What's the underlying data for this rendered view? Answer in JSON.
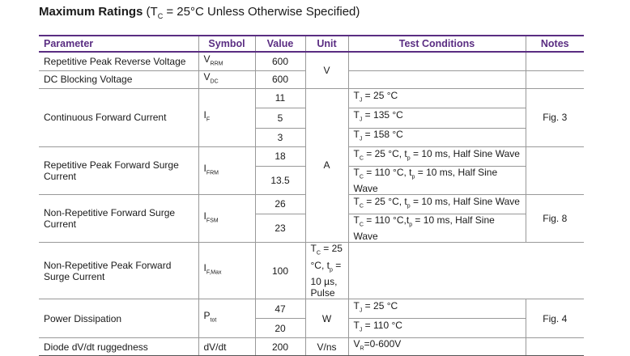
{
  "title": {
    "bold": "Maximum Ratings",
    "pre": "(T",
    "sub": "C",
    "post": " = 25°C Unless Otherwise Specified)"
  },
  "headers": {
    "parameter": "Parameter",
    "symbol": "Symbol",
    "value": "Value",
    "unit": "Unit",
    "test": "Test Conditions",
    "notes": "Notes"
  },
  "rows": {
    "vrrm": {
      "param": "Repetitive Peak Reverse Voltage",
      "sym": "V",
      "sub": "RRM",
      "value": "600"
    },
    "vdc": {
      "param": "DC Blocking Voltage",
      "sym": "V",
      "sub": "DC",
      "value": "600"
    },
    "unit_v": "V",
    "if": {
      "param": "Continuous Forward Current",
      "sym": "I",
      "sub": "F",
      "values": [
        "11",
        "5",
        "3"
      ],
      "conds": [
        {
          "a": "T",
          "as": "J",
          "b": " = 25 °C"
        },
        {
          "a": "T",
          "as": "J",
          "b": " = 135 °C"
        },
        {
          "a": "T",
          "as": "J",
          "b": " = 158 °C"
        }
      ],
      "note": "Fig. 3"
    },
    "ifrm": {
      "param": "Repetitive Peak Forward Surge Current",
      "sym": "I",
      "sub": "FRM",
      "values": [
        "18",
        "13.5"
      ],
      "conds": [
        {
          "a": "T",
          "as": "C",
          "b": " = 25 °C, t",
          "bs": "p",
          "c": " = 10 ms, Half Sine Wave"
        },
        {
          "a": "T",
          "as": "C",
          "b": " = 110 °C, t",
          "bs": "p",
          "c": " = 10 ms, Half Sine Wave"
        }
      ]
    },
    "unit_a": "A",
    "ifsm": {
      "param": "Non-Repetitive Forward Surge Current",
      "sym": "I",
      "sub": "FSM",
      "values": [
        "26",
        "23"
      ],
      "conds": [
        {
          "a": "T",
          "as": "C",
          "b": " = 25 °C, t",
          "bs": "p",
          "c": " = 10 ms, Half Sine Wave"
        },
        {
          "a": "T",
          "as": "C",
          "b": " = 110 °C,t",
          "bs": "p",
          "c": " = 10 ms, Half Sine Wave"
        }
      ],
      "note": "Fig. 8"
    },
    "ifmax": {
      "param": "Non-Repetitive Peak Forward Surge Current",
      "sym": "I",
      "sub": "F,Max",
      "value": "100",
      "cond": {
        "a": "T",
        "as": "C",
        "b": " = 25 °C, t",
        "bs": "p",
        "c": " = 10 µs, Pulse"
      }
    },
    "ptot": {
      "param": "Power Dissipation",
      "sym": "P",
      "sub": "tot",
      "values": [
        "47",
        "20"
      ],
      "unit": "W",
      "conds": [
        {
          "a": "T",
          "as": "J",
          "b": " = 25 °C"
        },
        {
          "a": "T",
          "as": "J",
          "b": " = 110 °C"
        }
      ],
      "note": "Fig. 4"
    },
    "dvdt": {
      "param": "Diode dV/dt ruggedness",
      "sym": "dV/dt",
      "value": "200",
      "unit": "V/ns",
      "cond": {
        "a": "V",
        "as": "R",
        "b": "=0-600V"
      }
    }
  }
}
